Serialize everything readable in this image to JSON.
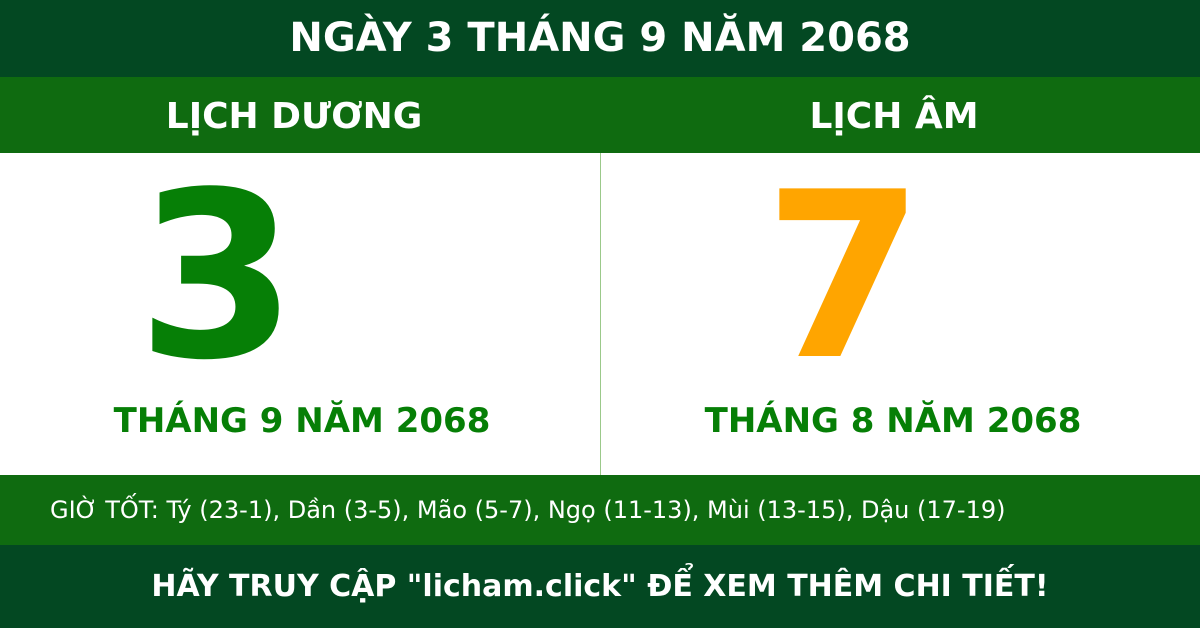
{
  "header": {
    "title": "NGÀY 3 THÁNG 9 NĂM 2068"
  },
  "solar": {
    "label": "LỊCH DƯƠNG",
    "day": "3",
    "month_year": "THÁNG 9 NĂM 2068",
    "color": "#067f06"
  },
  "lunar": {
    "label": "LỊCH ÂM",
    "day": "7",
    "month_year": "THÁNG 8 NĂM 2068",
    "color": "#ffa500"
  },
  "good_hours": "GIỜ TỐT: Tý (23-1), Dần (3-5), Mão (5-7), Ngọ (11-13), Mùi (13-15), Dậu (17-19)",
  "footer": {
    "cta": "HÃY TRUY CẬP \"licham.click\" ĐỂ XEM THÊM CHI TIẾT!"
  }
}
